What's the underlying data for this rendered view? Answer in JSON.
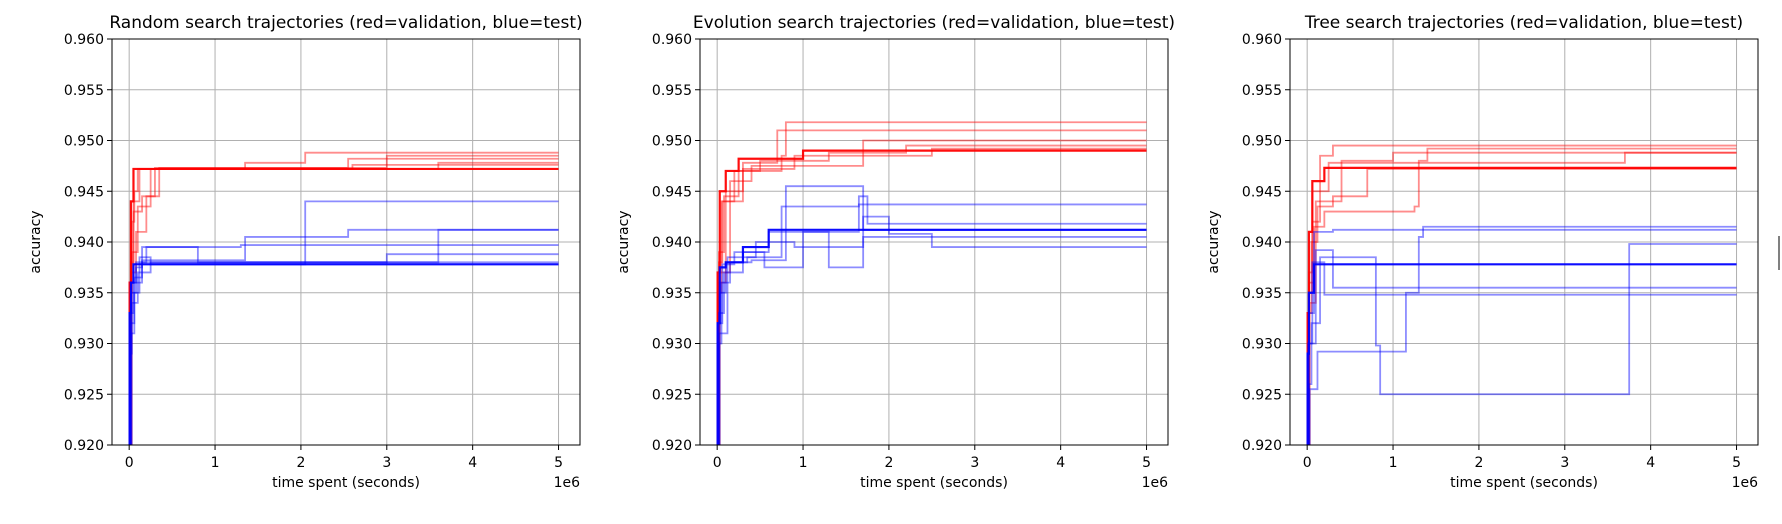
{
  "colors": {
    "validation": "#ff0000",
    "test": "#0000ff",
    "grid": "#b0b0b0"
  },
  "chart_data": [
    {
      "type": "line",
      "title": "Random search trajectories (red=validation, blue=test)",
      "xlabel": "time spent (seconds)",
      "ylabel": "accuracy",
      "x_offset_label": "1e6",
      "xlim": [
        -0.2,
        5.25
      ],
      "ylim": [
        0.92,
        0.96
      ],
      "xticks": [
        0,
        1,
        2,
        3,
        4,
        5
      ],
      "xtick_labels": [
        "0",
        "1",
        "2",
        "3",
        "4",
        "5"
      ],
      "yticks": [
        0.92,
        0.925,
        0.93,
        0.935,
        0.94,
        0.945,
        0.95,
        0.955,
        0.96
      ],
      "ytick_labels": [
        "0.920",
        "0.925",
        "0.930",
        "0.935",
        "0.940",
        "0.945",
        "0.950",
        "0.955",
        "0.960"
      ],
      "grid": true,
      "series": [
        {
          "kind": "validation",
          "bold": false,
          "x": [
            0,
            0.01,
            0.03,
            0.06,
            0.1,
            1.35,
            2.05,
            5.0
          ],
          "y": [
            0.92,
            0.935,
            0.942,
            0.945,
            0.9472,
            0.9478,
            0.9488,
            0.9488
          ]
        },
        {
          "kind": "validation",
          "bold": false,
          "x": [
            0,
            0.02,
            0.05,
            0.15,
            0.3,
            2.55,
            5.0
          ],
          "y": [
            0.92,
            0.938,
            0.943,
            0.9445,
            0.9473,
            0.9482,
            0.9482
          ]
        },
        {
          "kind": "validation",
          "bold": false,
          "x": [
            0,
            0.02,
            0.08,
            0.2,
            0.35,
            3.0,
            5.0
          ],
          "y": [
            0.92,
            0.937,
            0.941,
            0.9445,
            0.9473,
            0.9485,
            0.9485
          ]
        },
        {
          "kind": "validation",
          "bold": false,
          "x": [
            0,
            0.01,
            0.05,
            0.12,
            3.6,
            5.0
          ],
          "y": [
            0.92,
            0.936,
            0.944,
            0.9472,
            0.9478,
            0.9478
          ]
        },
        {
          "kind": "validation",
          "bold": false,
          "x": [
            0,
            0.03,
            0.1,
            0.25,
            2.6,
            5.0
          ],
          "y": [
            0.92,
            0.939,
            0.9435,
            0.9472,
            0.9476,
            0.9476
          ]
        },
        {
          "kind": "validation",
          "bold": true,
          "x": [
            0,
            0.005,
            0.02,
            0.05,
            5.0
          ],
          "y": [
            0.92,
            0.936,
            0.944,
            0.9472,
            0.9472
          ]
        },
        {
          "kind": "test",
          "bold": false,
          "x": [
            0,
            0.01,
            0.03,
            0.08,
            0.15,
            0.6,
            0.8,
            5.0
          ],
          "y": [
            0.92,
            0.929,
            0.936,
            0.9375,
            0.9395,
            0.9395,
            0.938,
            0.938
          ]
        },
        {
          "kind": "test",
          "bold": false,
          "x": [
            0,
            0.02,
            0.06,
            0.12,
            0.25,
            2.05,
            5.0
          ],
          "y": [
            0.92,
            0.931,
            0.935,
            0.9385,
            0.9378,
            0.944,
            0.944
          ]
        },
        {
          "kind": "test",
          "bold": false,
          "x": [
            0,
            0.02,
            0.05,
            0.15,
            0.3,
            1.35,
            2.55,
            5.0
          ],
          "y": [
            0.92,
            0.933,
            0.936,
            0.9382,
            0.9382,
            0.9405,
            0.9412,
            0.9412
          ]
        },
        {
          "kind": "test",
          "bold": false,
          "x": [
            0,
            0.03,
            0.1,
            0.25,
            3.6,
            5.0
          ],
          "y": [
            0.92,
            0.934,
            0.937,
            0.938,
            0.9412,
            0.9412
          ]
        },
        {
          "kind": "test",
          "bold": false,
          "x": [
            0,
            0.02,
            0.08,
            0.2,
            1.3,
            5.0
          ],
          "y": [
            0.92,
            0.935,
            0.938,
            0.9395,
            0.9397,
            0.9397
          ]
        },
        {
          "kind": "test",
          "bold": false,
          "x": [
            0,
            0.01,
            0.06,
            0.15,
            3.0,
            5.0
          ],
          "y": [
            0.92,
            0.932,
            0.9365,
            0.938,
            0.9388,
            0.9388
          ]
        },
        {
          "kind": "test",
          "bold": true,
          "x": [
            0,
            0.005,
            0.02,
            0.05,
            5.0
          ],
          "y": [
            0.92,
            0.933,
            0.936,
            0.9378,
            0.9378
          ]
        }
      ]
    },
    {
      "type": "line",
      "title": "Evolution search trajectories (red=validation, blue=test)",
      "xlabel": "time spent (seconds)",
      "ylabel": "accuracy",
      "x_offset_label": "1e6",
      "xlim": [
        -0.2,
        5.25
      ],
      "ylim": [
        0.92,
        0.96
      ],
      "xticks": [
        0,
        1,
        2,
        3,
        4,
        5
      ],
      "xtick_labels": [
        "0",
        "1",
        "2",
        "3",
        "4",
        "5"
      ],
      "yticks": [
        0.92,
        0.925,
        0.93,
        0.935,
        0.94,
        0.945,
        0.95,
        0.955,
        0.96
      ],
      "ytick_labels": [
        "0.920",
        "0.925",
        "0.930",
        "0.935",
        "0.940",
        "0.945",
        "0.950",
        "0.955",
        "0.960"
      ],
      "grid": true,
      "series": [
        {
          "kind": "validation",
          "bold": false,
          "x": [
            0,
            0.02,
            0.06,
            0.2,
            0.75,
            0.8,
            5.0
          ],
          "y": [
            0.92,
            0.938,
            0.944,
            0.947,
            0.9485,
            0.9518,
            0.9518
          ]
        },
        {
          "kind": "validation",
          "bold": false,
          "x": [
            0,
            0.02,
            0.1,
            0.3,
            0.7,
            5.0
          ],
          "y": [
            0.92,
            0.936,
            0.945,
            0.9478,
            0.951,
            0.951
          ]
        },
        {
          "kind": "validation",
          "bold": false,
          "x": [
            0,
            0.03,
            0.15,
            0.4,
            1.7,
            5.0
          ],
          "y": [
            0.92,
            0.937,
            0.946,
            0.9475,
            0.95,
            0.95
          ]
        },
        {
          "kind": "validation",
          "bold": false,
          "x": [
            0,
            0.02,
            0.08,
            0.25,
            0.5,
            1.3,
            2.2,
            5.0
          ],
          "y": [
            0.92,
            0.939,
            0.9445,
            0.947,
            0.948,
            0.9488,
            0.9495,
            0.9495
          ]
        },
        {
          "kind": "validation",
          "bold": false,
          "x": [
            0,
            0.01,
            0.05,
            0.3,
            0.9,
            2.5,
            5.0
          ],
          "y": [
            0.92,
            0.935,
            0.944,
            0.9472,
            0.9485,
            0.9492,
            0.9492
          ]
        },
        {
          "kind": "validation",
          "bold": true,
          "x": [
            0,
            0.005,
            0.03,
            0.1,
            0.25,
            1.0,
            5.0
          ],
          "y": [
            0.92,
            0.937,
            0.945,
            0.947,
            0.9482,
            0.949,
            0.949
          ]
        },
        {
          "kind": "test",
          "bold": false,
          "x": [
            0,
            0.02,
            0.05,
            0.15,
            0.4,
            0.8,
            1.65,
            1.7,
            2.5,
            5.0
          ],
          "y": [
            0.92,
            0.93,
            0.936,
            0.938,
            0.9382,
            0.9455,
            0.9455,
            0.9412,
            0.9412,
            0.9412
          ]
        },
        {
          "kind": "test",
          "bold": false,
          "x": [
            0,
            0.02,
            0.08,
            0.3,
            0.55,
            1.0,
            1.65,
            1.75,
            5.0
          ],
          "y": [
            0.92,
            0.933,
            0.937,
            0.939,
            0.9375,
            0.941,
            0.9445,
            0.9418,
            0.9418
          ]
        },
        {
          "kind": "test",
          "bold": false,
          "x": [
            0,
            0.03,
            0.1,
            0.35,
            0.75,
            1.35,
            1.65,
            5.0
          ],
          "y": [
            0.92,
            0.935,
            0.938,
            0.9385,
            0.9435,
            0.9435,
            0.9437,
            0.9437
          ]
        },
        {
          "kind": "test",
          "bold": false,
          "x": [
            0,
            0.01,
            0.06,
            0.2,
            0.6,
            1.3,
            1.7,
            5.0
          ],
          "y": [
            0.92,
            0.932,
            0.9378,
            0.939,
            0.941,
            0.9375,
            0.9405,
            0.9405
          ]
        },
        {
          "kind": "test",
          "bold": false,
          "x": [
            0,
            0.02,
            0.12,
            0.45,
            0.9,
            1.7,
            2.0,
            2.5,
            5.0
          ],
          "y": [
            0.92,
            0.931,
            0.9385,
            0.94,
            0.9395,
            0.9425,
            0.9408,
            0.9395,
            0.9395
          ]
        },
        {
          "kind": "test",
          "bold": true,
          "x": [
            0,
            0.005,
            0.03,
            0.1,
            0.3,
            0.6,
            5.0
          ],
          "y": [
            0.92,
            0.932,
            0.9375,
            0.938,
            0.9395,
            0.9412,
            0.9412
          ]
        }
      ]
    },
    {
      "type": "line",
      "title": "Tree search trajectories (red=validation, blue=test)",
      "xlabel": "time spent (seconds)",
      "ylabel": "accuracy",
      "x_offset_label": "1e6",
      "xlim": [
        -0.2,
        5.25
      ],
      "ylim": [
        0.92,
        0.96
      ],
      "xticks": [
        0,
        1,
        2,
        3,
        4,
        5
      ],
      "xtick_labels": [
        "0",
        "1",
        "2",
        "3",
        "4",
        "5"
      ],
      "yticks": [
        0.92,
        0.925,
        0.93,
        0.935,
        0.94,
        0.945,
        0.95,
        0.955,
        0.96
      ],
      "ytick_labels": [
        "0.920",
        "0.925",
        "0.930",
        "0.935",
        "0.940",
        "0.945",
        "0.950",
        "0.955",
        "0.960"
      ],
      "grid": true,
      "series": [
        {
          "kind": "validation",
          "bold": false,
          "x": [
            0,
            0.02,
            0.06,
            0.15,
            0.3,
            5.0
          ],
          "y": [
            0.92,
            0.935,
            0.942,
            0.9485,
            0.9495,
            0.9495
          ]
        },
        {
          "kind": "validation",
          "bold": false,
          "x": [
            0,
            0.01,
            0.05,
            0.12,
            0.3,
            0.65,
            0.7,
            5.0
          ],
          "y": [
            0.92,
            0.933,
            0.94,
            0.9435,
            0.9445,
            0.9445,
            0.9472,
            0.9472
          ]
        },
        {
          "kind": "validation",
          "bold": false,
          "x": [
            0,
            0.02,
            0.08,
            0.2,
            1.25,
            1.3,
            1.4,
            5.0
          ],
          "y": [
            0.92,
            0.936,
            0.9415,
            0.943,
            0.9435,
            0.948,
            0.9492,
            0.9492
          ]
        },
        {
          "kind": "validation",
          "bold": false,
          "x": [
            0,
            0.03,
            0.1,
            0.4,
            1.0,
            5.0
          ],
          "y": [
            0.92,
            0.934,
            0.944,
            0.948,
            0.9488,
            0.9488
          ]
        },
        {
          "kind": "validation",
          "bold": false,
          "x": [
            0,
            0.02,
            0.06,
            0.25,
            3.7,
            5.0
          ],
          "y": [
            0.92,
            0.937,
            0.945,
            0.9478,
            0.9488,
            0.9488
          ]
        },
        {
          "kind": "validation",
          "bold": true,
          "x": [
            0,
            0.005,
            0.02,
            0.06,
            0.2,
            5.0
          ],
          "y": [
            0.92,
            0.933,
            0.941,
            0.946,
            0.9473,
            0.9473
          ]
        },
        {
          "kind": "test",
          "bold": false,
          "x": [
            0,
            0.02,
            0.05,
            0.15,
            0.5,
            0.8,
            0.85,
            3.7,
            3.75,
            5.0
          ],
          "y": [
            0.92,
            0.926,
            0.932,
            0.9385,
            0.9385,
            0.9298,
            0.925,
            0.925,
            0.9398,
            0.9398
          ]
        },
        {
          "kind": "test",
          "bold": false,
          "x": [
            0,
            0.03,
            0.12,
            0.35,
            1.1,
            1.15,
            1.3,
            1.35,
            5.0
          ],
          "y": [
            0.92,
            0.9255,
            0.9292,
            0.9292,
            0.9292,
            0.935,
            0.9405,
            0.9415,
            0.9415
          ]
        },
        {
          "kind": "test",
          "bold": false,
          "x": [
            0,
            0.02,
            0.1,
            0.3,
            5.0
          ],
          "y": [
            0.92,
            0.93,
            0.9392,
            0.9355,
            0.9355
          ]
        },
        {
          "kind": "test",
          "bold": false,
          "x": [
            0,
            0.01,
            0.06,
            0.2,
            1.4,
            5.0
          ],
          "y": [
            0.92,
            0.93,
            0.938,
            0.9348,
            0.9348,
            0.9348
          ]
        },
        {
          "kind": "test",
          "bold": false,
          "x": [
            0,
            0.02,
            0.08,
            0.3,
            5.0
          ],
          "y": [
            0.92,
            0.933,
            0.941,
            0.9412,
            0.9412
          ]
        },
        {
          "kind": "test",
          "bold": true,
          "x": [
            0,
            0.005,
            0.02,
            0.08,
            5.0
          ],
          "y": [
            0.92,
            0.929,
            0.935,
            0.9378,
            0.9378
          ]
        }
      ]
    }
  ]
}
